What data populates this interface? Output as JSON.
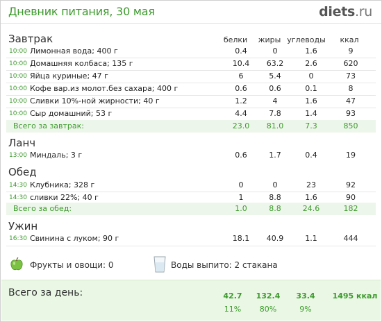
{
  "header": {
    "title": "Дневник питания, 30 мая",
    "logo_main": "diets",
    "logo_suffix": ".ru"
  },
  "columns": [
    "белки",
    "жиры",
    "углеводы",
    "ккал"
  ],
  "meals": [
    {
      "title": "Завтрак",
      "items": [
        {
          "time": "10:00",
          "name": "Лимонная вода; 400 г",
          "protein": "0.4",
          "fat": "0",
          "carbs": "1.6",
          "kcal": "9"
        },
        {
          "time": "10:00",
          "name": "Домашняя колбаса; 135 г",
          "protein": "10.4",
          "fat": "63.2",
          "carbs": "2.6",
          "kcal": "620"
        },
        {
          "time": "10:00",
          "name": "Яйца куриные; 47 г",
          "protein": "6",
          "fat": "5.4",
          "carbs": "0",
          "kcal": "73"
        },
        {
          "time": "10:00",
          "name": "Кофе вар.из молот.без сахара; 400 г",
          "protein": "0.6",
          "fat": "0.6",
          "carbs": "0.1",
          "kcal": "8"
        },
        {
          "time": "10:00",
          "name": "Сливки 10%-ной жирности; 40 г",
          "protein": "1.2",
          "fat": "4",
          "carbs": "1.6",
          "kcal": "47"
        },
        {
          "time": "10:00",
          "name": "Сыр домашний; 53 г",
          "protein": "4.4",
          "fat": "7.8",
          "carbs": "1.4",
          "kcal": "93"
        }
      ],
      "total": {
        "label": "Всего за завтрак:",
        "protein": "23.0",
        "fat": "81.0",
        "carbs": "7.3",
        "kcal": "850"
      }
    },
    {
      "title": "Ланч",
      "items": [
        {
          "time": "13:00",
          "name": "Миндаль; 3 г",
          "protein": "0.6",
          "fat": "1.7",
          "carbs": "0.4",
          "kcal": "19"
        }
      ]
    },
    {
      "title": "Обед",
      "items": [
        {
          "time": "14:30",
          "name": "Клубника; 328 г",
          "protein": "0",
          "fat": "0",
          "carbs": "23",
          "kcal": "92"
        },
        {
          "time": "14:30",
          "name": "сливки 22%; 40 г",
          "protein": "1",
          "fat": "8.8",
          "carbs": "1.6",
          "kcal": "90"
        }
      ],
      "total": {
        "label": "Всего за обед:",
        "protein": "1.0",
        "fat": "8.8",
        "carbs": "24.6",
        "kcal": "182"
      }
    },
    {
      "title": "Ужин",
      "items": [
        {
          "time": "16:30",
          "name": "Свинина с луком; 90 г",
          "protein": "18.1",
          "fat": "40.9",
          "carbs": "1.1",
          "kcal": "444"
        }
      ]
    }
  ],
  "extras": {
    "fruits": "Фрукты и овощи: 0",
    "water": "Воды выпито: 2 стакана",
    "fruit_icon": "apple-icon",
    "water_icon": "glass-icon"
  },
  "day_total": {
    "label": "Всего за день:",
    "protein": "42.7",
    "fat": "132.4",
    "carbs": "33.4",
    "kcal": "1495 ккал",
    "protein_pct": "11%",
    "fat_pct": "80%",
    "carbs_pct": "9%"
  },
  "colors": {
    "accent": "#3d9a2d",
    "total_bg": "#edf6ea",
    "day_bg": "#e9f7e4"
  }
}
